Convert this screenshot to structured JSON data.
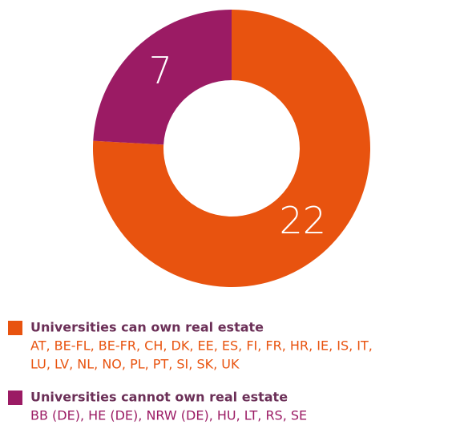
{
  "chart_data": {
    "type": "pie",
    "categories": [
      "Universities can own real estate",
      "Universities cannot own real estate"
    ],
    "values": [
      22,
      7
    ],
    "colors": [
      "#e8530f",
      "#9b1b64"
    ],
    "descriptions": [
      [
        "AT, BE-FL, BE-FR, CH, DK, EE, ES, FI, FR, HR, IE, IS, IT,",
        "LU, LV, NL, NO, PL, PT, SI, SK, UK"
      ],
      [
        "BB (DE), HE (DE), NRW (DE), HU, LT, RS, SE"
      ]
    ]
  }
}
